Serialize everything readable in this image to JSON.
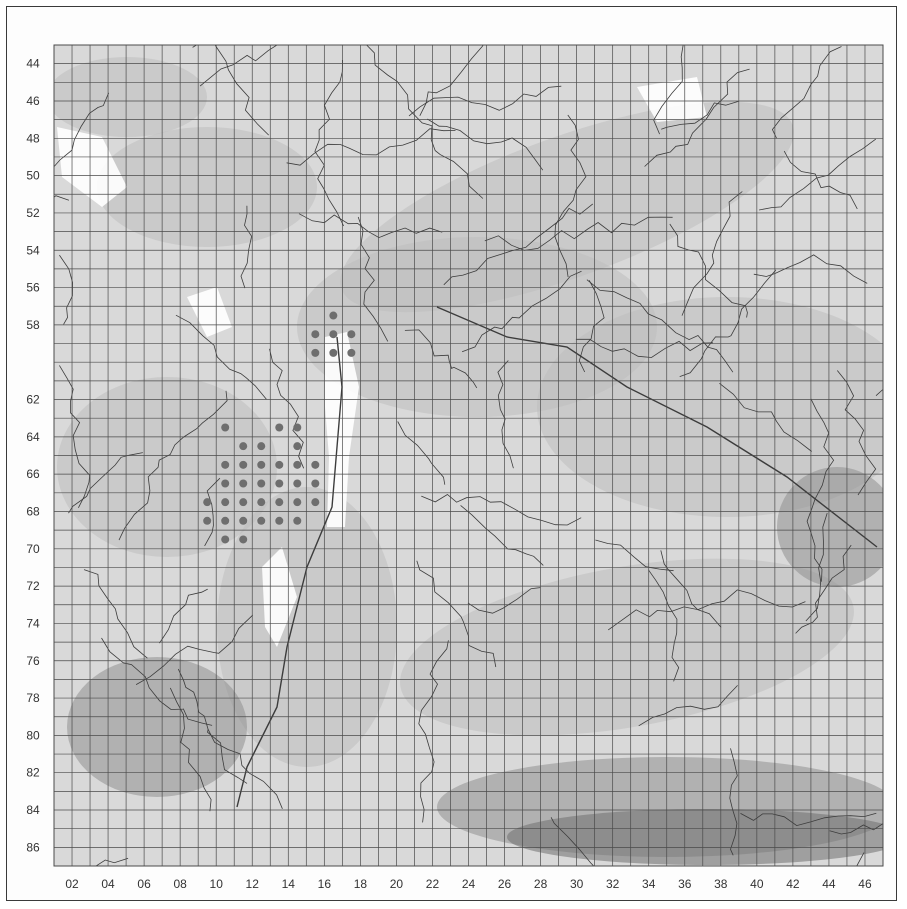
{
  "map": {
    "y_grid_labels": [
      "44",
      "46",
      "48",
      "50",
      "52",
      "54",
      "56",
      "58",
      "",
      "62",
      "64",
      "66",
      "68",
      "70",
      "72",
      "74",
      "76",
      "78",
      "80",
      "82",
      "84",
      "86"
    ],
    "x_grid_labels": [
      "02",
      "04",
      "06",
      "08",
      "10",
      "12",
      "14",
      "16",
      "18",
      "20",
      "22",
      "24",
      "26",
      "28",
      "30",
      "32",
      "34",
      "36",
      "38",
      "40",
      "42",
      "44",
      "46"
    ],
    "x_grid_range": [
      1,
      47
    ],
    "y_grid_range": [
      43,
      87
    ],
    "occurrence_points": [
      [
        15,
        58
      ],
      [
        16,
        57
      ],
      [
        16,
        58
      ],
      [
        17,
        58
      ],
      [
        15,
        59
      ],
      [
        16,
        59
      ],
      [
        17,
        59
      ],
      [
        10,
        63
      ],
      [
        11,
        64
      ],
      [
        12,
        64
      ],
      [
        13,
        63
      ],
      [
        14,
        63
      ],
      [
        14,
        64
      ],
      [
        10,
        65
      ],
      [
        11,
        65
      ],
      [
        12,
        65
      ],
      [
        13,
        65
      ],
      [
        14,
        65
      ],
      [
        15,
        65
      ],
      [
        10,
        66
      ],
      [
        11,
        66
      ],
      [
        12,
        66
      ],
      [
        13,
        66
      ],
      [
        14,
        66
      ],
      [
        15,
        66
      ],
      [
        9,
        67
      ],
      [
        10,
        67
      ],
      [
        11,
        67
      ],
      [
        12,
        67
      ],
      [
        13,
        67
      ],
      [
        14,
        67
      ],
      [
        15,
        67
      ],
      [
        9,
        68
      ],
      [
        10,
        68
      ],
      [
        11,
        68
      ],
      [
        12,
        68
      ],
      [
        13,
        68
      ],
      [
        14,
        68
      ],
      [
        10,
        69
      ],
      [
        11,
        69
      ]
    ],
    "colors": {
      "point": "#6e6e6e",
      "grid": "#4a4a4a",
      "river": "#3c3c3c",
      "terrain_light": "#d9d9d9",
      "terrain_mid": "#bdbdbd",
      "terrain_dark": "#8f8f8f",
      "water_valley": "#ffffff"
    }
  }
}
